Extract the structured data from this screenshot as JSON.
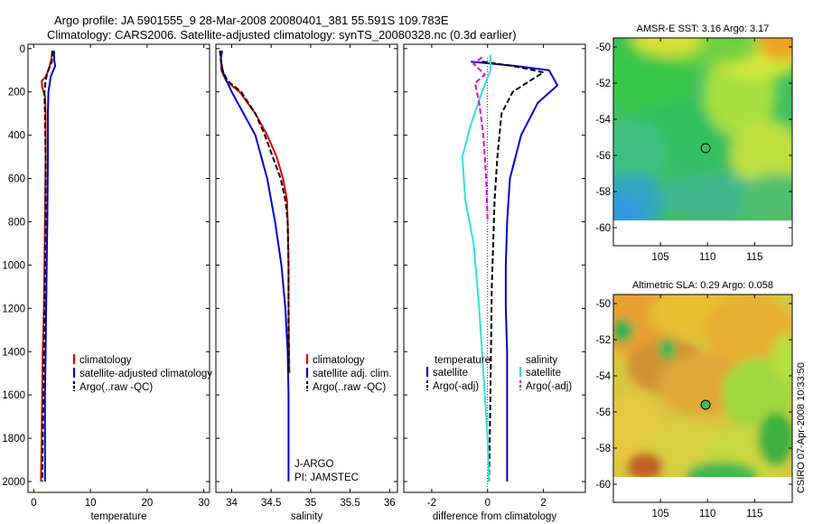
{
  "title_line1": "Argo profile: JA 5901555_9 28-Mar-2008 20080401_381 55.591S 109.783E",
  "title_line2": "Climatology: CARS2006. Satellite-adjusted climatology: synTS_20080328.nc (0.3d earlier)",
  "side_label": "CSIRO 07-Apr-2008 10:33:50",
  "colors": {
    "red": "#e00000",
    "blue": "#0000d0",
    "black": "#000000",
    "cyan": "#30e0e0",
    "magenta": "#e000e0"
  },
  "chart_data": [
    {
      "type": "line",
      "xlabel": "temperature",
      "xlim": [
        -1,
        31
      ],
      "ylim": [
        2050,
        -20
      ],
      "xticks": [
        0,
        10,
        20,
        30
      ],
      "yticks": [
        0,
        200,
        400,
        600,
        800,
        1000,
        1200,
        1400,
        1600,
        1800,
        2000
      ],
      "legend": [
        "climatology",
        "satellite-adjusted climatology",
        "Argo(..raw -QC)"
      ],
      "series": [
        {
          "color": "red",
          "style": "solid",
          "x": [
            3.3,
            3.1,
            2.6,
            2.1,
            1.4,
            1.5,
            2.0,
            2.1,
            2.1,
            2.0,
            1.9,
            1.8,
            1.6,
            1.5,
            1.4,
            1.3
          ],
          "y": [
            10,
            50,
            100,
            130,
            150,
            180,
            220,
            300,
            500,
            800,
            1000,
            1200,
            1400,
            1600,
            1800,
            2000
          ]
        },
        {
          "color": "blue",
          "style": "solid",
          "x": [
            3.6,
            3.6,
            3.8,
            3.0,
            2.6,
            2.5,
            2.5,
            2.4,
            2.3,
            2.2,
            2.1,
            2.0,
            2.0,
            2.0
          ],
          "y": [
            10,
            50,
            80,
            130,
            200,
            300,
            500,
            800,
            1000,
            1200,
            1400,
            1600,
            1800,
            2000
          ]
        },
        {
          "color": "black",
          "style": "dashed",
          "x": [
            3.3,
            3.2,
            2.4,
            2.1,
            1.9,
            2.0,
            2.1,
            2.1,
            2.0,
            1.9,
            1.8,
            1.7,
            1.6,
            1.5
          ],
          "y": [
            10,
            60,
            110,
            150,
            200,
            300,
            500,
            800,
            1000,
            1200,
            1400,
            1600,
            1800,
            2000
          ]
        }
      ]
    },
    {
      "type": "line",
      "xlabel": "salinity",
      "xlim": [
        33.8,
        36.1
      ],
      "ylim": [
        2050,
        -20
      ],
      "xticks": [
        34,
        34.5,
        35,
        35.5,
        36
      ],
      "yticks": [
        0,
        200,
        400,
        600,
        800,
        1000,
        1200,
        1400,
        1600,
        1800,
        2000
      ],
      "legend": [
        "climatology",
        "satellite adj. clim.",
        "Argo(..raw -QC)"
      ],
      "annotations": [
        "J-ARGO",
        "PI: JAMSTEC"
      ],
      "series": [
        {
          "color": "red",
          "style": "solid",
          "x": [
            33.86,
            33.87,
            33.93,
            34.1,
            34.3,
            34.45,
            34.57,
            34.65,
            34.7,
            34.71,
            34.72,
            34.72,
            34.73
          ],
          "y": [
            10,
            100,
            150,
            200,
            300,
            400,
            500,
            600,
            700,
            800,
            1000,
            1200,
            1500
          ]
        },
        {
          "color": "blue",
          "style": "solid",
          "x": [
            33.88,
            33.86,
            33.9,
            34.0,
            34.15,
            34.3,
            34.45,
            34.55,
            34.63,
            34.68,
            34.71,
            34.72,
            34.72,
            34.72
          ],
          "y": [
            10,
            50,
            120,
            200,
            300,
            400,
            600,
            800,
            1000,
            1200,
            1400,
            1600,
            1800,
            2000
          ]
        },
        {
          "color": "black",
          "style": "dashed",
          "x": [
            33.85,
            33.88,
            33.95,
            34.12,
            34.3,
            34.42,
            34.52,
            34.62,
            34.68,
            34.71,
            34.72,
            34.72,
            34.72
          ],
          "y": [
            10,
            100,
            150,
            200,
            300,
            400,
            500,
            600,
            700,
            800,
            1000,
            1200,
            1500
          ]
        }
      ]
    },
    {
      "type": "line",
      "xlabel": "difference from climatology",
      "xlim": [
        -3,
        3.5
      ],
      "ylim": [
        2050,
        -20
      ],
      "xticks": [
        -2,
        0,
        2
      ],
      "yticks": [
        0,
        200,
        400,
        600,
        800,
        1000,
        1200,
        1400,
        1600,
        1800,
        2000
      ],
      "legend": [
        {
          "header": "temperature",
          "items": [
            "satellite",
            "Argo(-adj)"
          ]
        },
        {
          "header": "salinity",
          "items": [
            "satellite",
            "Argo(-adj)"
          ]
        }
      ],
      "series": [
        {
          "color": "blue",
          "style": "solid",
          "x": [
            -0.6,
            1.0,
            2.2,
            2.5,
            1.8,
            1.2,
            0.8,
            0.7,
            0.65,
            0.65,
            0.7,
            0.7,
            0.7,
            0.7
          ],
          "y": [
            60,
            80,
            100,
            170,
            250,
            400,
            600,
            800,
            1000,
            1200,
            1400,
            1600,
            1800,
            2000
          ]
        },
        {
          "color": "black",
          "style": "dashed",
          "x": [
            -0.2,
            0.9,
            2.0,
            1.5,
            0.9,
            0.5,
            0.35,
            0.25,
            0.2,
            0.15,
            0.12,
            0.1,
            0.08,
            0.05
          ],
          "y": [
            60,
            80,
            110,
            150,
            200,
            300,
            500,
            700,
            900,
            1100,
            1400,
            1600,
            1800,
            2000
          ]
        },
        {
          "color": "cyan",
          "style": "solid",
          "x": [
            0.1,
            0.1,
            -0.2,
            -0.6,
            -0.9,
            -0.8,
            -0.5,
            -0.3,
            -0.1,
            0.0,
            0.05
          ],
          "y": [
            30,
            100,
            200,
            350,
            500,
            700,
            900,
            1200,
            1600,
            1800,
            2000
          ]
        },
        {
          "color": "magenta",
          "style": "dashed",
          "x": [
            -0.2,
            -0.5,
            -0.1,
            -0.45,
            -0.3,
            -0.15,
            -0.05,
            0.0
          ],
          "y": [
            40,
            70,
            120,
            160,
            250,
            400,
            600,
            800
          ]
        }
      ]
    },
    {
      "type": "heatmap",
      "title": "AMSR-E SST: 3.16 Argo: 3.17",
      "xlim": [
        100,
        119
      ],
      "ylim": [
        -61,
        -49.5
      ],
      "xticks": [
        105,
        110,
        115
      ],
      "yticks": [
        -50,
        -52,
        -54,
        -56,
        -58,
        -60
      ],
      "marker": {
        "lon": 109.8,
        "lat": -55.6
      }
    },
    {
      "type": "heatmap",
      "title": "Altimetric SLA: 0.29 Argo: 0.058",
      "xlim": [
        100,
        119
      ],
      "ylim": [
        -61,
        -49.5
      ],
      "xticks": [
        105,
        110,
        115
      ],
      "yticks": [
        -50,
        -52,
        -54,
        -56,
        -58,
        -60
      ],
      "marker": {
        "lon": 109.8,
        "lat": -55.6
      }
    }
  ]
}
